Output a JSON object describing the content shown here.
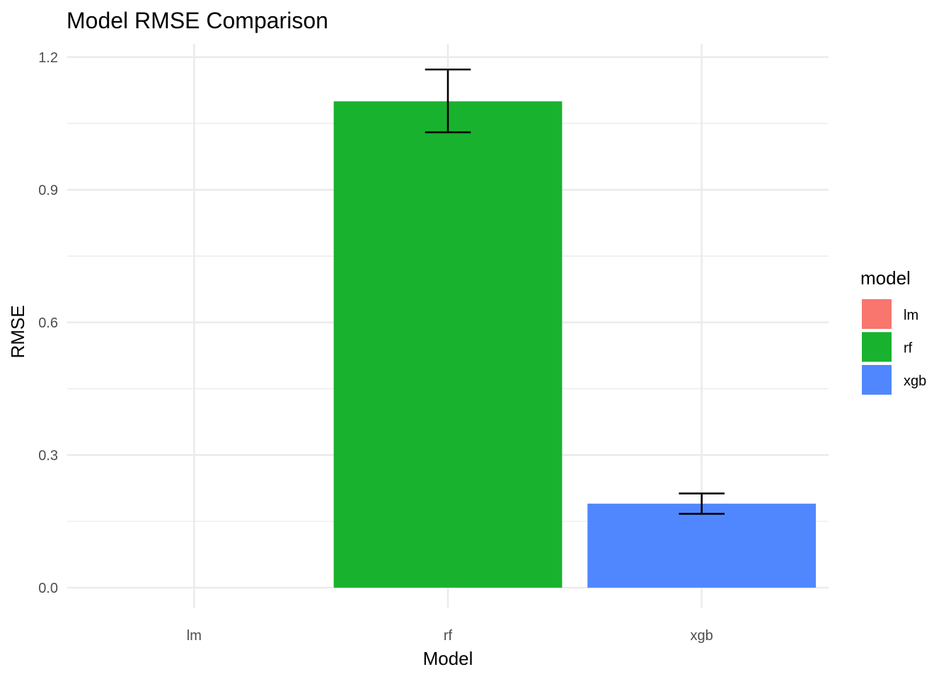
{
  "chart_data": {
    "type": "bar",
    "title": "Model RMSE Comparison",
    "xlabel": "Model",
    "ylabel": "RMSE",
    "categories": [
      "lm",
      "rf",
      "xgb"
    ],
    "values": [
      0.0,
      1.1,
      0.19
    ],
    "error_low": [
      null,
      1.03,
      0.167
    ],
    "error_high": [
      null,
      1.172,
      0.213
    ],
    "colors": [
      "#F8766D",
      "#19B22F",
      "#5087FF"
    ],
    "ylim": [
      -0.045,
      1.23
    ],
    "yticks": [
      0.0,
      0.3,
      0.6,
      0.9,
      1.2
    ],
    "ytick_labels": [
      "0.0",
      "0.3",
      "0.6",
      "0.9",
      "1.2"
    ],
    "grid": true,
    "legend": {
      "title": "model",
      "position": "right",
      "entries": [
        "lm",
        "rf",
        "xgb"
      ]
    }
  }
}
